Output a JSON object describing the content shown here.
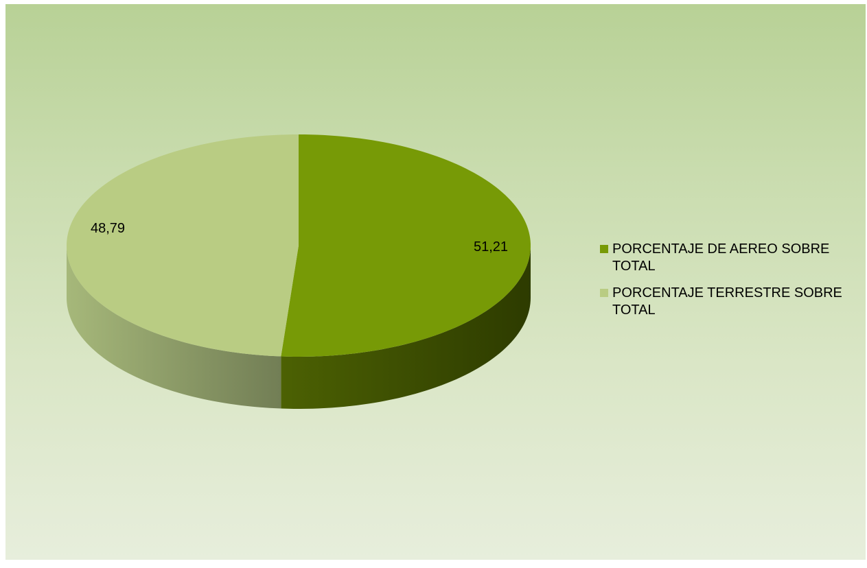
{
  "chart_data": {
    "type": "pie",
    "style": "3d",
    "categories": [
      "PORCENTAJE DE AEREO SOBRE TOTAL",
      "PORCENTAJE TERRESTRE SOBRE TOTAL"
    ],
    "values": [
      51.21,
      48.79
    ],
    "data_labels": [
      "51,21",
      "48,79"
    ],
    "colors": [
      "#779a06",
      "#b9cc83"
    ],
    "side_colors": [
      "#3f5002",
      "#8a9a5c"
    ],
    "title": "",
    "legend_position": "right"
  },
  "legend": {
    "items": [
      {
        "label": "PORCENTAJE DE AEREO SOBRE TOTAL",
        "color": "#779a06"
      },
      {
        "label": "PORCENTAJE TERRESTRE SOBRE TOTAL",
        "color": "#b9cc83"
      }
    ]
  }
}
